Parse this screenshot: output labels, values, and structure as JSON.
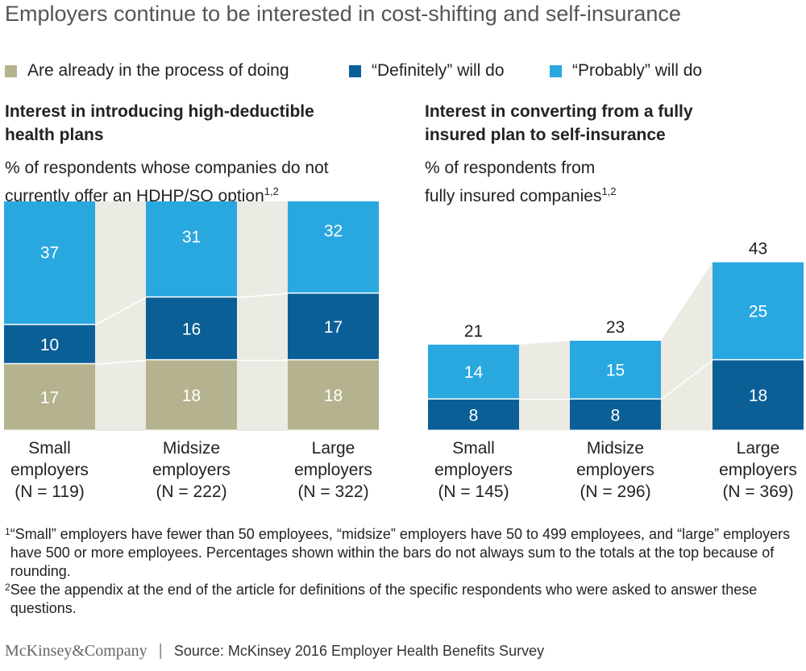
{
  "title": "Employers continue to be interested in cost-shifting and self-insurance",
  "legend": [
    {
      "label": "Are already in the process of doing",
      "color": "#b5b38f"
    },
    {
      "label": "“Definitely” will do",
      "color": "#0b5f97"
    },
    {
      "label": "“Probably” will do",
      "color": "#29a8e0"
    }
  ],
  "colors": {
    "connector": "#ebeae3",
    "label_light": "#ffffff",
    "label_dark": "#222222"
  },
  "panels": {
    "left": {
      "subtitle_line1": "Interest in introducing high-deductible",
      "subtitle_line2": "health plans",
      "unit_line1": "% of respondents whose companies do not",
      "unit_line2": "currently offer an HDHP/SO option",
      "unit_sup": "1,2"
    },
    "right": {
      "subtitle_line1": "Interest in converting from a fully",
      "subtitle_line2": "insured plan to self-insurance",
      "unit_line1": "% of respondents from",
      "unit_line2": "fully insured companies",
      "unit_sup": "1,2"
    }
  },
  "chart_data": [
    {
      "type": "bar",
      "stacked": true,
      "title": "Interest in introducing high-deductible health plans",
      "ylabel": "% of respondents whose companies do not currently offer an HDHP/SO option",
      "categories": [
        [
          "Small",
          "employers",
          "(N = 119)"
        ],
        [
          "Midsize",
          "employers",
          "(N = 222)"
        ],
        [
          "Large",
          "employers",
          "(N = 322)"
        ]
      ],
      "series": [
        {
          "name": "Are already in the process of doing",
          "values": [
            17,
            18,
            18
          ]
        },
        {
          "name": "“Definitely” will do",
          "values": [
            10,
            16,
            17
          ]
        },
        {
          "name": "“Probably” will do",
          "values": [
            37,
            31,
            32
          ]
        }
      ],
      "totals": [
        64,
        65,
        66
      ]
    },
    {
      "type": "bar",
      "stacked": true,
      "title": "Interest in converting from a fully insured plan to self-insurance",
      "ylabel": "% of respondents from fully insured companies",
      "categories": [
        [
          "Small",
          "employers",
          "(N = 145)"
        ],
        [
          "Midsize",
          "employers",
          "(N = 296)"
        ],
        [
          "Large",
          "employers",
          "(N = 369)"
        ]
      ],
      "series": [
        {
          "name": "Are already in the process of doing",
          "values": [
            0,
            0,
            0
          ]
        },
        {
          "name": "“Definitely” will do",
          "values": [
            8,
            8,
            18
          ]
        },
        {
          "name": "“Probably” will do",
          "values": [
            14,
            15,
            25
          ]
        }
      ],
      "totals": [
        21,
        23,
        43
      ]
    }
  ],
  "footnotes": [
    {
      "mark": "1",
      "text": "“Small” employers have fewer than 50 employees, “midsize” employers have 50 to 499 employees, and “large” employers have 500 or more employees. Percentages shown within the bars do not always sum to the totals at the top because of rounding."
    },
    {
      "mark": "2",
      "text": "See the appendix at the end of the article for definitions of the specific respondents who were asked to answer these questions."
    }
  ],
  "footer": {
    "brand": "McKinsey&Company",
    "separator": "|",
    "source": "Source: McKinsey 2016 Employer Health Benefits Survey"
  }
}
